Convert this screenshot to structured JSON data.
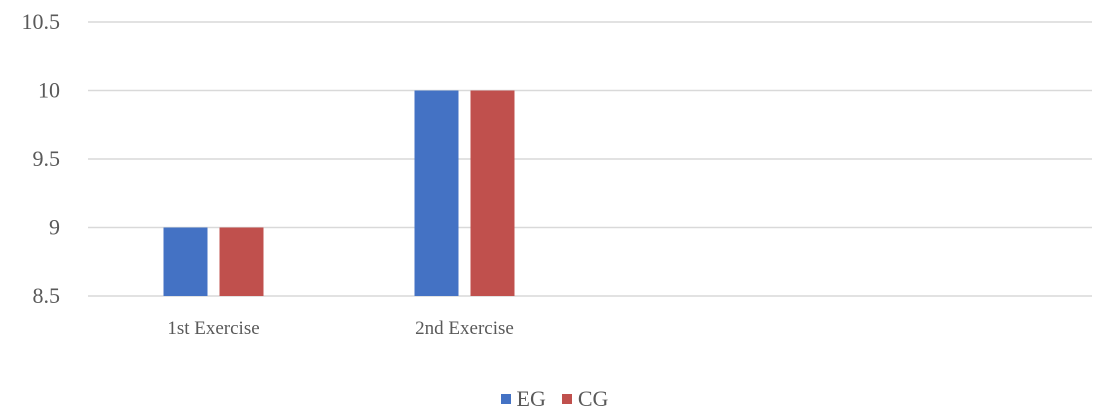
{
  "chart_data": {
    "type": "bar",
    "categories": [
      "1st Exercise",
      "2nd Exercise",
      "",
      ""
    ],
    "series": [
      {
        "name": "EG",
        "values": [
          9,
          10,
          null,
          null
        ],
        "color": "#4472C4"
      },
      {
        "name": "CG",
        "values": [
          9,
          10,
          null,
          null
        ],
        "color": "#C0504D"
      }
    ],
    "yticks": [
      "8.5",
      "9",
      "9.5",
      "10",
      "10.5"
    ],
    "ylim": [
      8.5,
      10.5
    ],
    "grid": true,
    "legend_position": "bottom"
  }
}
